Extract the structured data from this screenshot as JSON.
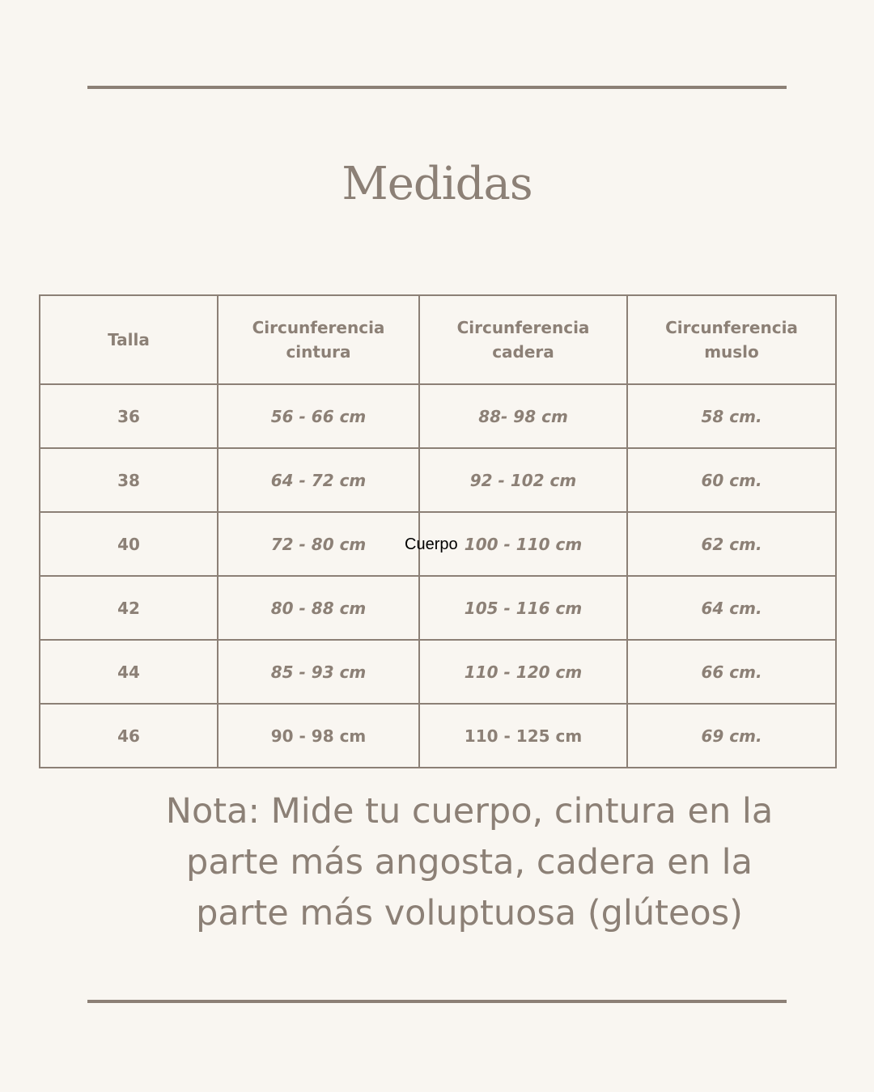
{
  "title": "Medidas",
  "table": {
    "headers": [
      "Talla",
      "Circunferencia cintura",
      "Circunferencia cadera",
      "Circunferencia muslo"
    ],
    "rows": [
      [
        "36",
        "56 - 66 cm",
        "88- 98 cm",
        "58 cm."
      ],
      [
        "38",
        "64 - 72 cm",
        "92 - 102 cm",
        "60 cm."
      ],
      [
        "40",
        "72 - 80 cm",
        "100 - 110 cm",
        "62 cm."
      ],
      [
        "42",
        "80 - 88 cm",
        "105 - 116 cm",
        "64 cm."
      ],
      [
        "44",
        "85 - 93 cm",
        "110 - 120 cm",
        "66 cm."
      ],
      [
        "46",
        "90 - 98 cm",
        "110 - 125 cm",
        "69 cm."
      ]
    ]
  },
  "overlay_label": "Cuerpo",
  "note": "Nota: Mide tu cuerpo, cintura en la parte más angosta, cadera en la parte más voluptuosa (glúteos)",
  "colors": {
    "background": "#f9f6f1",
    "accent": "#8c8076"
  }
}
